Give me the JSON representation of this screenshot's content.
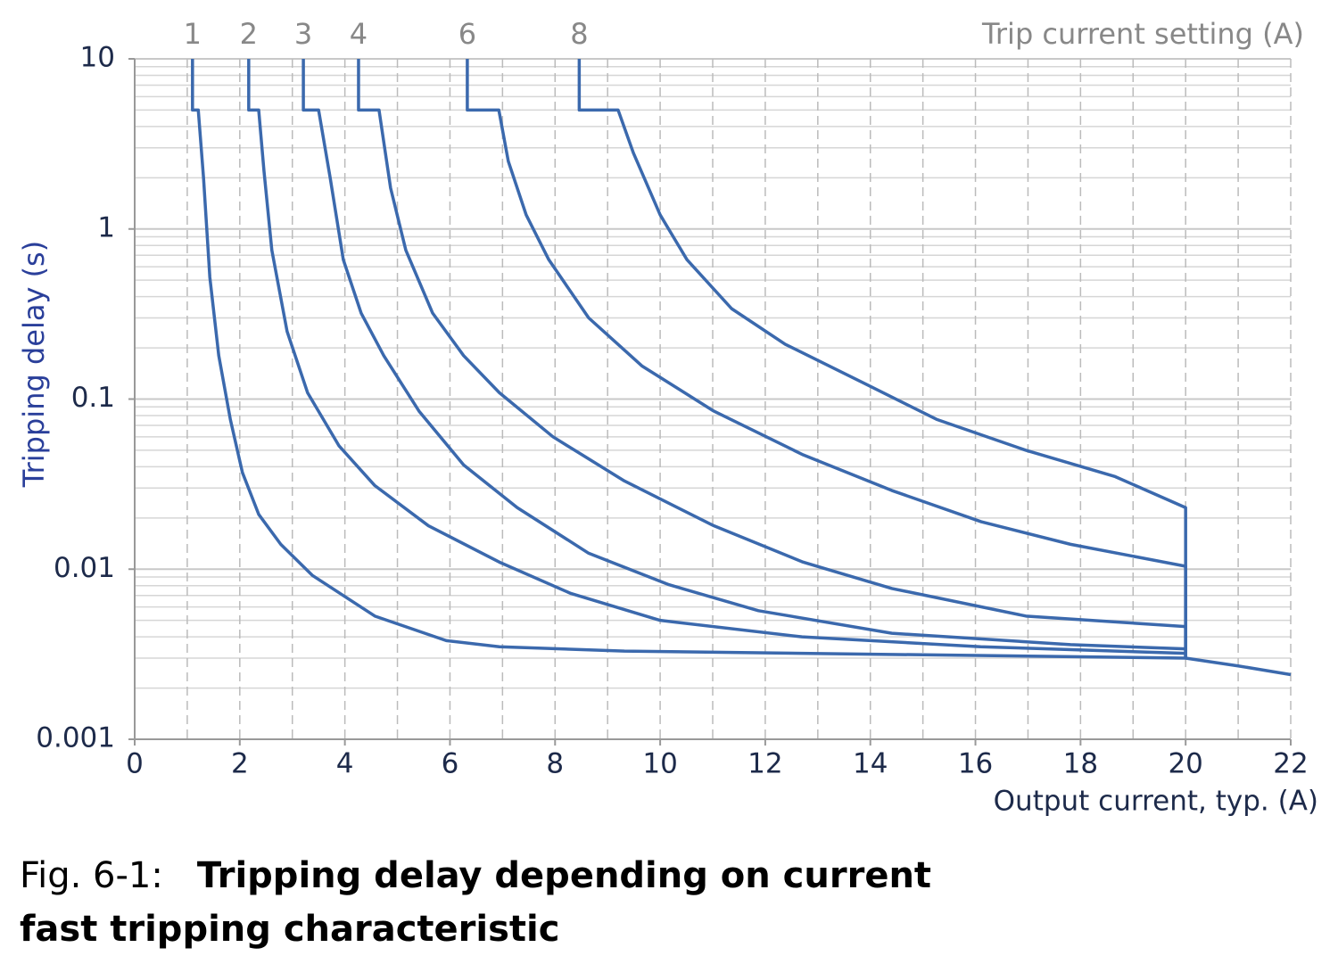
{
  "chart_data": {
    "type": "line",
    "top_axis_label": "Trip current setting (A)",
    "x_label": "Output current, typ. (A)",
    "y_label": "Tripping delay (s)",
    "caption": {
      "label": "Fig. 6-1:",
      "line1": "Tripping delay depending on current",
      "line2": "fast tripping characteristic"
    },
    "xlim": [
      0,
      22
    ],
    "xticks": [
      0,
      2,
      4,
      6,
      8,
      10,
      12,
      14,
      16,
      18,
      20,
      22
    ],
    "ylim": [
      0.001,
      10
    ],
    "yticks": [
      0.001,
      0.01,
      0.1,
      1,
      10
    ],
    "y_log": true,
    "grid": true,
    "color": "#3b69ad",
    "series": [
      {
        "name": "1",
        "x": [
          1.1,
          1.1,
          1.21,
          1.31,
          1.43,
          1.6,
          1.82,
          2.05,
          2.36,
          2.78,
          3.38,
          4.57,
          5.93,
          6.94,
          9.32,
          20.0,
          21.0,
          22.0
        ],
        "values": [
          10,
          5,
          5,
          2,
          0.52,
          0.18,
          0.076,
          0.037,
          0.021,
          0.014,
          0.0092,
          0.0053,
          0.0038,
          0.0035,
          0.0033,
          0.003,
          0.0027,
          0.0024
        ]
      },
      {
        "name": "2",
        "x": [
          2.17,
          2.17,
          2.36,
          2.46,
          2.61,
          2.9,
          3.29,
          3.89,
          4.57,
          5.59,
          6.94,
          8.3,
          10.0,
          12.7,
          16.1,
          20.0,
          20.0
        ],
        "values": [
          10,
          5,
          5,
          2.2,
          0.75,
          0.25,
          0.109,
          0.053,
          0.031,
          0.018,
          0.011,
          0.0072,
          0.005,
          0.004,
          0.0035,
          0.0032,
          0.003
        ]
      },
      {
        "name": "3",
        "x": [
          3.21,
          3.21,
          3.5,
          3.72,
          3.97,
          4.31,
          4.74,
          5.41,
          6.26,
          7.28,
          8.64,
          10.17,
          11.87,
          14.41,
          17.81,
          20.0,
          20.0
        ],
        "values": [
          10,
          5,
          5,
          2,
          0.66,
          0.32,
          0.18,
          0.085,
          0.041,
          0.023,
          0.0124,
          0.0081,
          0.0057,
          0.0042,
          0.0036,
          0.0034,
          0.003
        ]
      },
      {
        "name": "4",
        "x": [
          4.26,
          4.26,
          4.65,
          4.87,
          5.16,
          5.67,
          6.26,
          6.94,
          7.96,
          9.32,
          11.02,
          12.72,
          14.41,
          16.96,
          20.0,
          20.0
        ],
        "values": [
          10,
          5,
          5,
          1.74,
          0.75,
          0.32,
          0.18,
          0.109,
          0.06,
          0.033,
          0.018,
          0.011,
          0.0077,
          0.0053,
          0.0046,
          0.003
        ]
      },
      {
        "name": "6",
        "x": [
          6.33,
          6.33,
          6.93,
          7.11,
          7.45,
          7.88,
          8.64,
          9.66,
          11.02,
          12.72,
          14.41,
          16.11,
          17.81,
          20.0,
          20.0
        ],
        "values": [
          10,
          5,
          5,
          2.5,
          1.21,
          0.66,
          0.3,
          0.156,
          0.085,
          0.047,
          0.029,
          0.019,
          0.014,
          0.0104,
          0.003
        ]
      },
      {
        "name": "8",
        "x": [
          8.46,
          8.46,
          9.2,
          9.49,
          10.0,
          10.51,
          11.36,
          12.38,
          13.9,
          15.26,
          16.96,
          18.66,
          20.0,
          20.0
        ],
        "values": [
          10,
          5,
          5,
          2.8,
          1.21,
          0.66,
          0.34,
          0.21,
          0.123,
          0.076,
          0.05,
          0.035,
          0.023,
          0.003
        ]
      }
    ]
  }
}
